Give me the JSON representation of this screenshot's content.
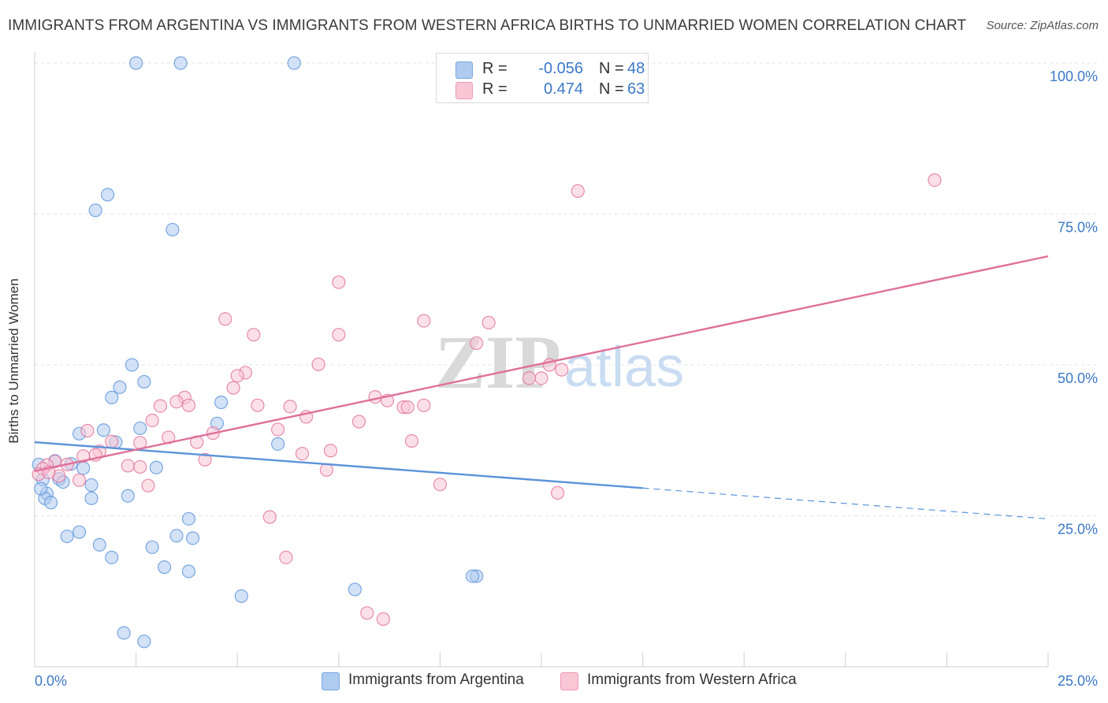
{
  "title": "IMMIGRANTS FROM ARGENTINA VS IMMIGRANTS FROM WESTERN AFRICA BIRTHS TO UNMARRIED WOMEN CORRELATION CHART",
  "source": "Source: ZipAtlas.com",
  "watermark": {
    "zip": "ZIP",
    "atlas": "atlas"
  },
  "legend": {
    "rows": [
      {
        "r_label": "R =",
        "r_value": "-0.056",
        "n_label": "N =",
        "n_value": "48",
        "color": "#aecbf0",
        "border": "#7aa8e0"
      },
      {
        "r_label": "R =",
        "r_value": "0.474",
        "n_label": "N =",
        "n_value": "63",
        "color": "#f9c6d6",
        "border": "#ee9ab6"
      }
    ]
  },
  "bottom_legend": [
    {
      "label": "Immigrants from Argentina",
      "color": "#aecbf0",
      "border": "#7aa8e0"
    },
    {
      "label": "Immigrants from Western Africa",
      "color": "#f9c6d6",
      "border": "#ee9ab6"
    }
  ],
  "chart_data": {
    "type": "scatter",
    "title": "IMMIGRANTS FROM ARGENTINA VS IMMIGRANTS FROM WESTERN AFRICA BIRTHS TO UNMARRIED WOMEN CORRELATION CHART",
    "xlabel": "",
    "ylabel": "Births to Unmarried Women",
    "xlim": [
      0,
      25
    ],
    "ylim": [
      0,
      100
    ],
    "x_ticks": [
      {
        "value": 0,
        "label": "0.0%"
      },
      {
        "value": 25,
        "label": "25.0%"
      }
    ],
    "y_ticks": [
      {
        "value": 25,
        "label": "25.0%"
      },
      {
        "value": 50,
        "label": "50.0%"
      },
      {
        "value": 75,
        "label": "75.0%"
      },
      {
        "value": 100,
        "label": "100.0%"
      }
    ],
    "grid": true,
    "legend_position": "top-center",
    "series": [
      {
        "name": "Immigrants from Argentina",
        "color": "#5b93d9",
        "fill": "#aecbf0",
        "trend": {
          "x_start": 0,
          "y_start": 37.2,
          "x_end": 15,
          "y_end": 29.6,
          "x_dash_end": 25,
          "y_dash_end": 24.5
        },
        "points": [
          [
            2.5,
            100
          ],
          [
            3.6,
            100
          ],
          [
            6.4,
            100
          ],
          [
            1.8,
            78.2
          ],
          [
            1.5,
            75.6
          ],
          [
            3.4,
            72.4
          ],
          [
            2.4,
            50
          ],
          [
            2.1,
            46.3
          ],
          [
            1.9,
            44.6
          ],
          [
            2.7,
            47.2
          ],
          [
            4.6,
            43.8
          ],
          [
            4.5,
            40.3
          ],
          [
            1.1,
            38.6
          ],
          [
            1.7,
            39.2
          ],
          [
            2.6,
            39.5
          ],
          [
            2.0,
            37.2
          ],
          [
            6.0,
            36.9
          ],
          [
            0.1,
            33.5
          ],
          [
            0.5,
            34.1
          ],
          [
            0.9,
            33.6
          ],
          [
            1.2,
            32.9
          ],
          [
            3.0,
            33.0
          ],
          [
            0.2,
            31.0
          ],
          [
            0.6,
            31.1
          ],
          [
            0.7,
            30.6
          ],
          [
            1.4,
            30.1
          ],
          [
            0.3,
            28.7
          ],
          [
            0.25,
            27.9
          ],
          [
            1.4,
            27.9
          ],
          [
            0.4,
            27.2
          ],
          [
            2.3,
            28.3
          ],
          [
            3.8,
            24.5
          ],
          [
            1.1,
            22.3
          ],
          [
            0.8,
            21.6
          ],
          [
            3.5,
            21.7
          ],
          [
            3.9,
            21.3
          ],
          [
            1.6,
            20.2
          ],
          [
            2.9,
            19.8
          ],
          [
            1.9,
            18.1
          ],
          [
            3.2,
            16.5
          ],
          [
            3.8,
            15.8
          ],
          [
            7.9,
            12.8
          ],
          [
            10.9,
            15.0
          ],
          [
            10.8,
            15.0
          ],
          [
            5.1,
            11.7
          ],
          [
            2.2,
            5.6
          ],
          [
            2.7,
            4.2
          ],
          [
            0.15,
            29.5
          ]
        ]
      },
      {
        "name": "Immigrants from Western Africa",
        "color": "#e0709a",
        "fill": "#f9c6d6",
        "trend": {
          "x_start": 0,
          "y_start": 32.4,
          "x_end": 25,
          "y_end": 68.0
        },
        "points": [
          [
            22.2,
            80.6
          ],
          [
            13.4,
            78.8
          ],
          [
            7.5,
            63.7
          ],
          [
            4.7,
            57.6
          ],
          [
            9.6,
            57.3
          ],
          [
            11.2,
            57.0
          ],
          [
            5.4,
            55.0
          ],
          [
            7.5,
            55.0
          ],
          [
            10.9,
            53.6
          ],
          [
            7.0,
            50.1
          ],
          [
            12.7,
            50.0
          ],
          [
            13.0,
            49.2
          ],
          [
            5.2,
            48.7
          ],
          [
            5.0,
            48.2
          ],
          [
            4.9,
            46.2
          ],
          [
            12.5,
            47.8
          ],
          [
            12.2,
            47.8
          ],
          [
            8.4,
            44.7
          ],
          [
            3.7,
            44.6
          ],
          [
            3.5,
            43.9
          ],
          [
            8.7,
            44.1
          ],
          [
            3.1,
            43.2
          ],
          [
            5.5,
            43.3
          ],
          [
            9.1,
            43.0
          ],
          [
            9.2,
            43.0
          ],
          [
            9.6,
            43.3
          ],
          [
            6.3,
            43.1
          ],
          [
            3.8,
            43.3
          ],
          [
            6.7,
            41.4
          ],
          [
            8.0,
            40.6
          ],
          [
            2.9,
            40.8
          ],
          [
            1.3,
            39.1
          ],
          [
            6.0,
            39.3
          ],
          [
            4.4,
            38.7
          ],
          [
            3.3,
            38.0
          ],
          [
            9.3,
            37.4
          ],
          [
            1.9,
            37.3
          ],
          [
            2.6,
            37.1
          ],
          [
            4.0,
            37.2
          ],
          [
            7.3,
            35.8
          ],
          [
            1.6,
            35.7
          ],
          [
            1.5,
            35.1
          ],
          [
            6.6,
            35.3
          ],
          [
            4.2,
            34.3
          ],
          [
            1.2,
            34.9
          ],
          [
            0.5,
            34.0
          ],
          [
            0.8,
            33.5
          ],
          [
            2.3,
            33.3
          ],
          [
            2.6,
            33.1
          ],
          [
            0.3,
            33.4
          ],
          [
            0.2,
            32.8
          ],
          [
            7.2,
            32.6
          ],
          [
            0.6,
            31.6
          ],
          [
            1.1,
            30.9
          ],
          [
            0.1,
            31.9
          ],
          [
            2.8,
            30.0
          ],
          [
            10.0,
            30.2
          ],
          [
            12.9,
            28.8
          ],
          [
            5.8,
            24.8
          ],
          [
            6.2,
            18.1
          ],
          [
            8.2,
            8.9
          ],
          [
            8.6,
            7.9
          ],
          [
            0.35,
            32.2
          ]
        ]
      }
    ]
  }
}
